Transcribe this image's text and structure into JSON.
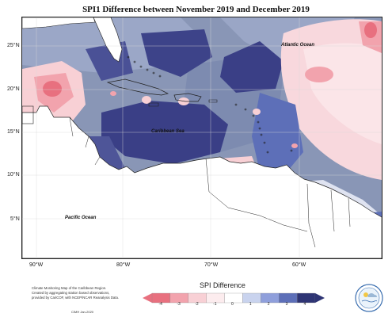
{
  "title": "SPI1 Difference between November 2019 and December 2019",
  "axes": {
    "lat_ticks": [
      "25°N",
      "20°N",
      "15°N",
      "10°N",
      "5°N"
    ],
    "lon_ticks": [
      "90°W",
      "80°W",
      "70°W",
      "60°W"
    ]
  },
  "labels": {
    "atlantic": "Atlantic Ocean",
    "caribbean": "Caribbean Sea",
    "pacific": "Pacific Ocean"
  },
  "legend": {
    "title": "SPI Difference",
    "ticks": [
      "-4",
      "-3",
      "-2",
      "-1",
      "0",
      "1",
      "2",
      "3",
      "4"
    ],
    "colors": [
      "#e8707f",
      "#f2a3ad",
      "#f8d0d5",
      "#fcecee",
      "#ffffff",
      "#c9d3ee",
      "#8f9fdb",
      "#5d6fb8",
      "#2e3474"
    ]
  },
  "credit": {
    "line1": "Climate Monitoring Map of the Caribbean Region.",
    "line2": "Created by aggregating station based observations,",
    "line3": "provided by CariCOF, with NCEP/NCAR Reanalysis Data.",
    "date": "CIMH Jan-2020"
  },
  "logo": {
    "text": "CIMH"
  },
  "colors": {
    "ocean_base": "#8996b6",
    "strong_neg": "#e8707f",
    "mild_neg": "#f8d0d5",
    "near_zero": "#fcecee",
    "mild_pos": "#b3bce0",
    "strong_pos": "#3a3f86",
    "land": "#ffffff"
  }
}
